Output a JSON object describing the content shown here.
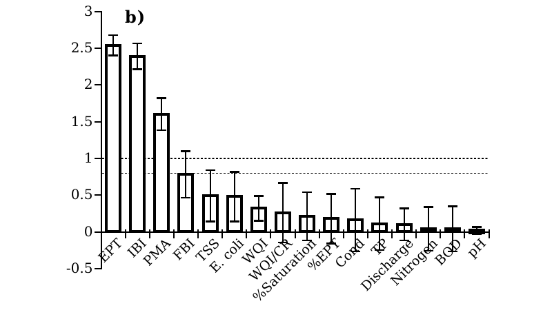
{
  "figure": {
    "background": "#ffffff",
    "panel_label": "b)"
  },
  "chart_data": {
    "type": "bar",
    "title": "",
    "panel_label": "b)",
    "xlabel": "",
    "ylabel": "",
    "categories": [
      "EPT",
      "IBI",
      "PMA",
      "FBI",
      "TSS",
      "E. coli",
      "WQI",
      "WQI/CR",
      "%Saturation",
      "%EPT",
      "Cond",
      "TP",
      "Discharge",
      "Nitrogen",
      "BOD",
      "pH"
    ],
    "values": [
      2.54,
      2.39,
      1.6,
      0.78,
      0.49,
      0.48,
      0.32,
      0.26,
      0.21,
      0.18,
      0.16,
      0.11,
      0.1,
      0.04,
      0.04,
      0.02
    ],
    "errors": [
      0.14,
      0.18,
      0.22,
      0.32,
      0.35,
      0.34,
      0.17,
      0.41,
      0.33,
      0.34,
      0.43,
      0.36,
      0.22,
      0.3,
      0.31,
      0.05
    ],
    "ylim": [
      -0.5,
      3
    ],
    "yticks": [
      -0.5,
      0,
      0.5,
      1,
      1.5,
      2,
      2.5,
      3
    ],
    "ytick_labels": [
      "-0.5",
      "0",
      "0.5",
      "1",
      "1.5",
      "2",
      "2.5",
      "3"
    ],
    "reference_lines": [
      1.0,
      0.8
    ],
    "grid": false,
    "legend": false,
    "bar_fill": "#ffffff",
    "bar_border": "#000000",
    "axis_color": "#000000",
    "error_bar_color": "#000000",
    "category_label_rotation_deg": 45
  }
}
